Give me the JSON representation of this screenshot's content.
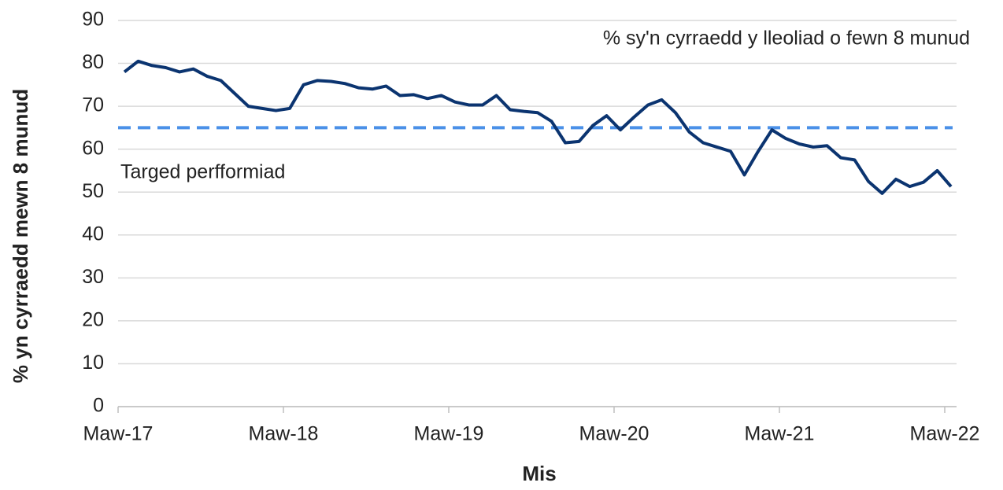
{
  "chart_data": {
    "type": "line",
    "y_label": "% yn cyrraedd mewn 8 munud",
    "x_label": "Mis",
    "categories": [
      "Maw-17",
      null,
      null,
      null,
      null,
      null,
      null,
      null,
      null,
      null,
      null,
      null,
      "Maw-18",
      null,
      null,
      null,
      null,
      null,
      null,
      null,
      null,
      null,
      null,
      null,
      "Maw-19",
      null,
      null,
      null,
      null,
      null,
      null,
      null,
      null,
      null,
      null,
      null,
      "Maw-20",
      null,
      null,
      null,
      null,
      null,
      null,
      null,
      null,
      null,
      null,
      null,
      "Maw-21",
      null,
      null,
      null,
      null,
      null,
      null,
      null,
      null,
      null,
      null,
      null,
      "Maw-22"
    ],
    "series": [
      {
        "name": "% sy'n cyrraedd y lleoliad o fewn 8 munud",
        "color": "#0b3470",
        "values": [
          78,
          80.5,
          79.5,
          79,
          78,
          78.7,
          77,
          76,
          73,
          70,
          69.5,
          69,
          69.5,
          75,
          76,
          75.8,
          75.3,
          74.3,
          74,
          74.7,
          72.5,
          72.7,
          71.8,
          72.5,
          71,
          70.3,
          70.3,
          72.5,
          69.2,
          68.8,
          68.5,
          66.5,
          61.5,
          61.8,
          65.5,
          67.8,
          64.5,
          67.5,
          70.3,
          71.5,
          68.5,
          64,
          61.5,
          60.5,
          59.5,
          54,
          59.5,
          64.5,
          62.5,
          61.2,
          60.5,
          60.8,
          58,
          57.5,
          52.5,
          49.7,
          53,
          51.3,
          52.3,
          55,
          51.3
        ]
      }
    ],
    "target": {
      "name": "Targed perfformiad",
      "value": 65,
      "color": "#4a90e8"
    },
    "ylim": [
      0,
      90
    ],
    "yticks": [
      0,
      10,
      20,
      30,
      40,
      50,
      60,
      70,
      80,
      90
    ],
    "grid": true
  }
}
